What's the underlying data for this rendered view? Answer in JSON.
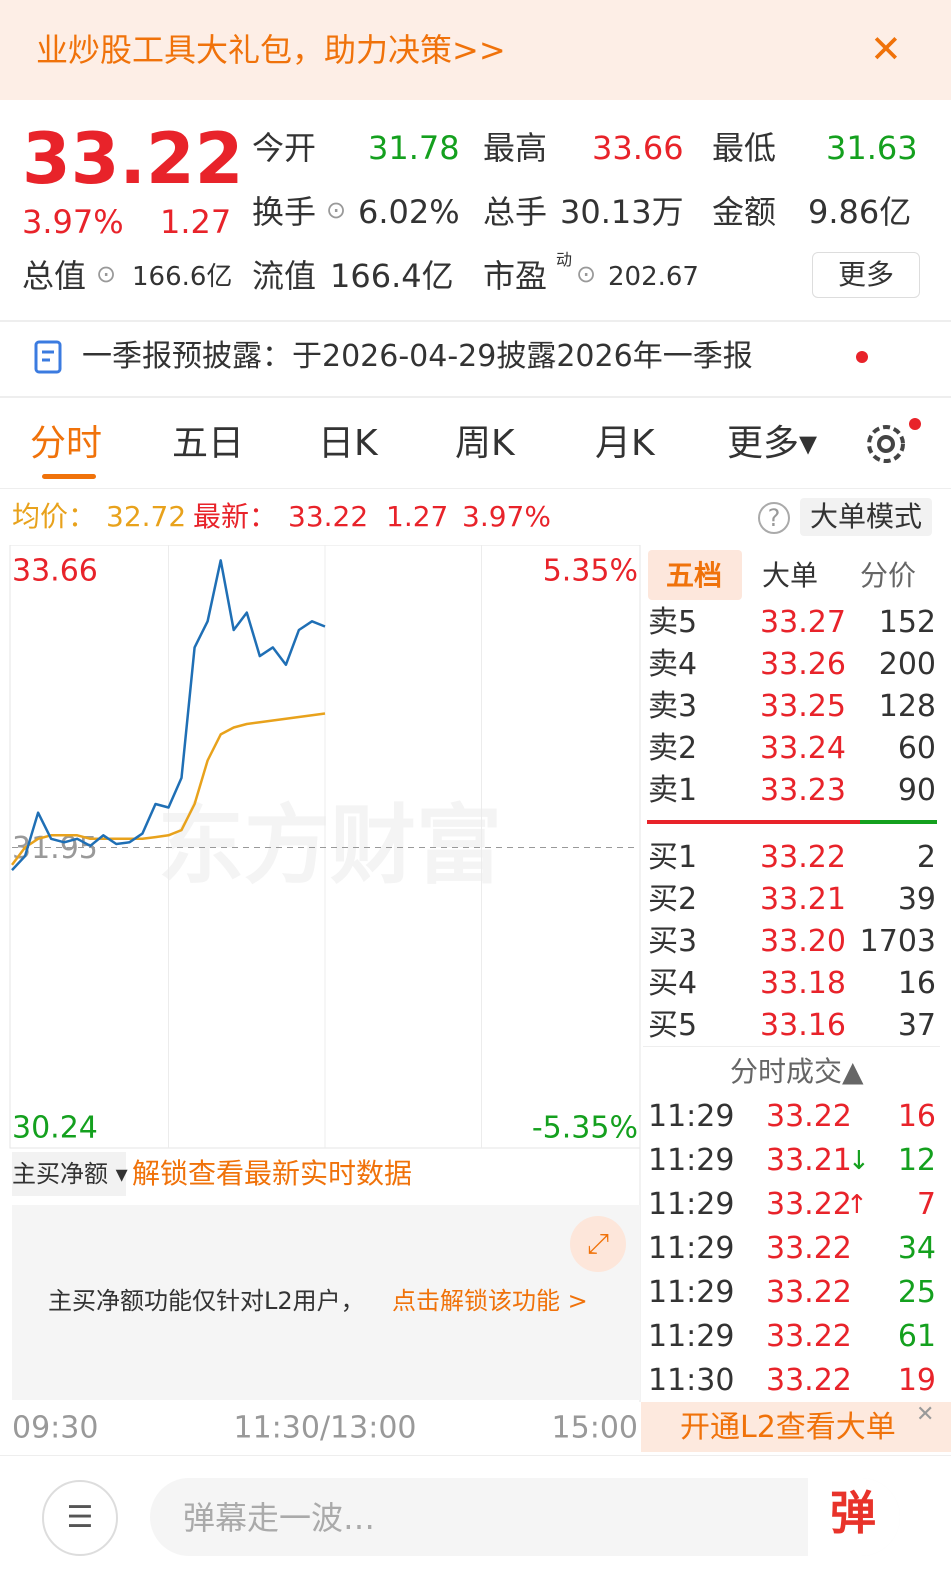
{
  "banner": {
    "text": "业炒股工具大礼包，助力决策>>",
    "close": "✕"
  },
  "quote": {
    "price": "33.22",
    "change_pct": "3.97%",
    "change": "1.27",
    "stats": [
      {
        "label": "今开",
        "value": "31.78"
      },
      {
        "label": "最高",
        "value": "33.66"
      },
      {
        "label": "最低",
        "value": "31.63"
      },
      {
        "label": "换手",
        "value": "6.02%"
      },
      {
        "label": "总手",
        "value": "30.13万"
      },
      {
        "label": "金额",
        "value": "9.86亿"
      },
      {
        "label": "总值",
        "value": "166.6亿"
      },
      {
        "label": "流值",
        "value": "166.4亿"
      },
      {
        "label": "市盈",
        "sup": "动",
        "value": "202.67"
      }
    ],
    "more": "更多"
  },
  "notice": {
    "text": "一季报预披露：于2026-04-29披露2026年一季报"
  },
  "tabs": [
    "分时",
    "五日",
    "日K",
    "周K",
    "月K",
    "更多▾"
  ],
  "info": {
    "avg_label": "均价：",
    "avg": "32.72",
    "last_label": "最新：",
    "last": "33.22",
    "change": "1.27",
    "change_pct": "3.97%",
    "help": "?",
    "mode": "大单模式"
  },
  "chart_data": {
    "type": "line",
    "watermark": "东方财富",
    "x": [
      0,
      5,
      10,
      15,
      20,
      25,
      30,
      35,
      40,
      45,
      50,
      55,
      60,
      65,
      70,
      75,
      80,
      85,
      90,
      95,
      100,
      105,
      110,
      115,
      120
    ],
    "xlim": [
      0,
      240
    ],
    "xticks": [
      {
        "value": 0,
        "label": "09:30"
      },
      {
        "value": 120,
        "label": "11:30/13:00"
      },
      {
        "value": 240,
        "label": "15:00"
      }
    ],
    "xgrid": [
      60,
      120,
      180
    ],
    "ylim": [
      30.24,
      33.66
    ],
    "yticks": [
      33.66,
      31.95,
      30.24
    ],
    "y2lim": [
      -5.35,
      5.35
    ],
    "y2ticks": [
      {
        "value": 5.35,
        "label": "5.35%"
      },
      {
        "value": -5.35,
        "label": "-5.35%"
      }
    ],
    "series": [
      {
        "name": "价格",
        "color": "#1f6fb5",
        "values": [
          31.82,
          31.9,
          32.15,
          32.0,
          31.98,
          32.0,
          31.96,
          32.02,
          31.97,
          31.98,
          32.03,
          32.2,
          32.18,
          32.35,
          33.1,
          33.25,
          33.6,
          33.2,
          33.3,
          33.05,
          33.1,
          33.0,
          33.2,
          33.25,
          33.22
        ]
      },
      {
        "name": "均价",
        "color": "#e8a21c",
        "values": [
          31.85,
          31.95,
          32.0,
          32.02,
          32.02,
          32.02,
          32.0,
          32.0,
          32.0,
          32.0,
          32.0,
          32.01,
          32.02,
          32.05,
          32.2,
          32.45,
          32.6,
          32.64,
          32.66,
          32.67,
          32.68,
          32.69,
          32.7,
          32.71,
          32.72
        ]
      }
    ]
  },
  "net_buy": {
    "dropdown": "主买净额 ▾",
    "unlock": "解锁查看最新实时数据",
    "note": "主买净额功能仅针对L2用户，",
    "link": "点击解锁该功能 >"
  },
  "book": {
    "tabs": [
      "五档",
      "大单",
      "分价"
    ],
    "sell": [
      [
        "卖5",
        "33.27",
        "152"
      ],
      [
        "卖4",
        "33.26",
        "200"
      ],
      [
        "卖3",
        "33.25",
        "128"
      ],
      [
        "卖2",
        "33.24",
        "60"
      ],
      [
        "卖1",
        "33.23",
        "90"
      ]
    ],
    "buy": [
      [
        "买1",
        "33.22",
        "2"
      ],
      [
        "买2",
        "33.21",
        "39"
      ],
      [
        "买3",
        "33.20",
        "1703"
      ],
      [
        "买4",
        "33.18",
        "16"
      ],
      [
        "买5",
        "33.16",
        "37"
      ]
    ]
  },
  "trades": {
    "title": "分时成交▲",
    "rows": [
      {
        "time": "11:29",
        "price": "33.22",
        "arrow": "",
        "volume": "16",
        "color": "#e8232a"
      },
      {
        "time": "11:29",
        "price": "33.21",
        "arrow": "↓",
        "volume": "12",
        "color": "#14a01e"
      },
      {
        "time": "11:29",
        "price": "33.22",
        "arrow": "↑",
        "volume": "7",
        "color": "#e8232a"
      },
      {
        "time": "11:29",
        "price": "33.22",
        "arrow": "",
        "volume": "34",
        "color": "#14a01e"
      },
      {
        "time": "11:29",
        "price": "33.22",
        "arrow": "",
        "volume": "25",
        "color": "#14a01e"
      },
      {
        "time": "11:29",
        "price": "33.22",
        "arrow": "",
        "volume": "61",
        "color": "#14a01e"
      },
      {
        "time": "11:30",
        "price": "33.22",
        "arrow": "",
        "volume": "19",
        "color": "#e8232a"
      }
    ],
    "l2": "开通L2查看大单",
    "close": "✕"
  },
  "bottom": {
    "placeholder": "弹幕走一波…",
    "button": "弹"
  }
}
